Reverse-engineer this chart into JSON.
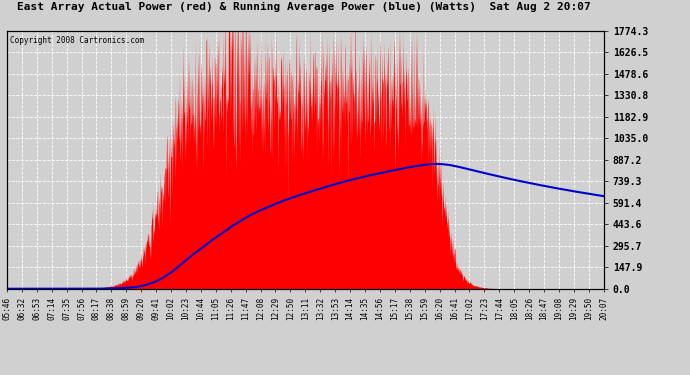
{
  "title": "East Array Actual Power (red) & Running Average Power (blue) (Watts)  Sat Aug 2 20:07",
  "copyright": "Copyright 2008 Cartronics.com",
  "ylabel_right": [
    "1774.3",
    "1626.5",
    "1478.6",
    "1330.8",
    "1182.9",
    "1035.0",
    "887.2",
    "739.3",
    "591.4",
    "443.6",
    "295.7",
    "147.9",
    "0.0"
  ],
  "ytick_values": [
    1774.3,
    1626.5,
    1478.6,
    1330.8,
    1182.9,
    1035.0,
    887.2,
    739.3,
    591.4,
    443.6,
    295.7,
    147.9,
    0.0
  ],
  "ymax": 1774.3,
  "ymin": 0.0,
  "bg_color": "#d0d0d0",
  "red_color": "#ff0000",
  "blue_color": "#0000cc",
  "x_labels": [
    "05:46",
    "06:32",
    "06:53",
    "07:14",
    "07:35",
    "07:56",
    "08:17",
    "08:38",
    "08:59",
    "09:20",
    "09:41",
    "10:02",
    "10:23",
    "10:44",
    "11:05",
    "11:26",
    "11:47",
    "12:08",
    "12:29",
    "12:50",
    "13:11",
    "13:32",
    "13:53",
    "14:14",
    "14:35",
    "14:56",
    "15:17",
    "15:38",
    "15:59",
    "16:20",
    "16:41",
    "17:02",
    "17:23",
    "17:44",
    "18:05",
    "18:26",
    "18:47",
    "19:08",
    "19:29",
    "19:50",
    "20:07"
  ]
}
